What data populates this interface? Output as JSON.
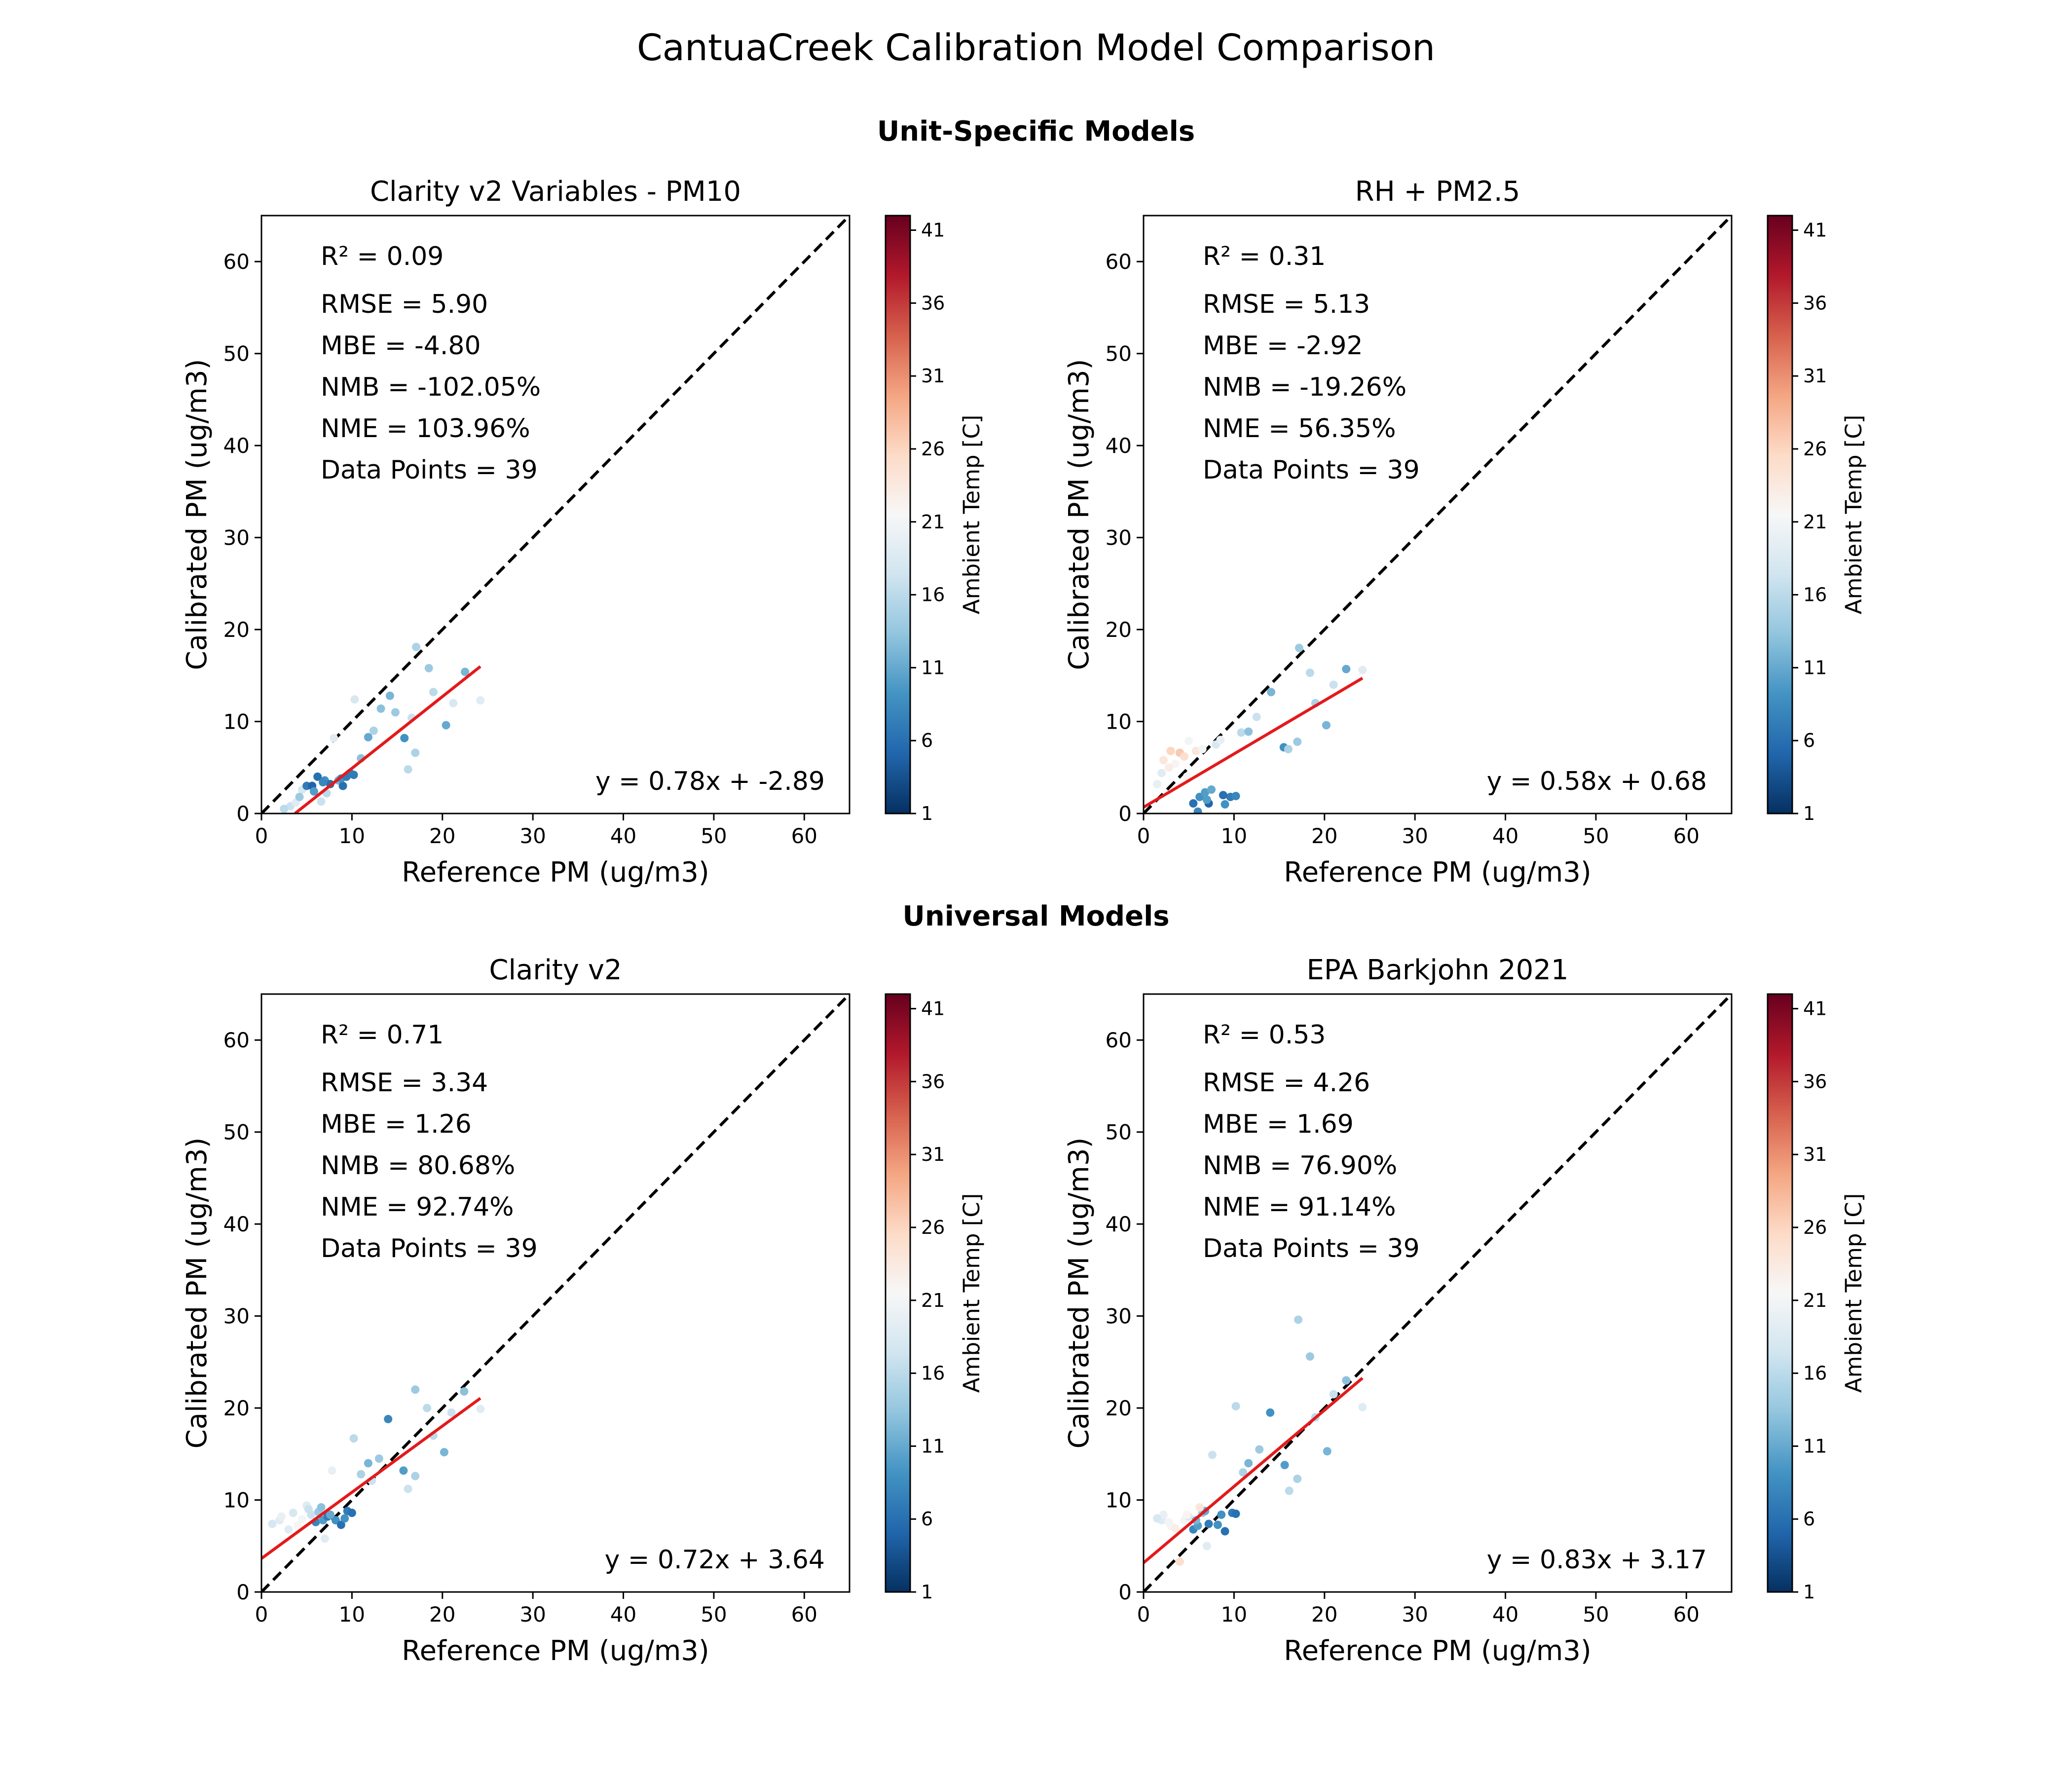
{
  "figure": {
    "title": "CantuaCreek Calibration Model Comparison",
    "sections": [
      "Unit-Specific Models",
      "Universal Models"
    ]
  },
  "axes": {
    "xlabel": "Reference PM (ug/m3)",
    "ylabel": "Calibrated PM (ug/m3)",
    "xlim": [
      0,
      65
    ],
    "ylim": [
      0,
      65
    ],
    "ticks": [
      0,
      10,
      20,
      30,
      40,
      50,
      60
    ]
  },
  "colorbar": {
    "label": "Ambient Temp [C]",
    "range": [
      1,
      42
    ],
    "ticks": [
      1,
      6,
      11,
      16,
      21,
      26,
      31,
      36,
      41
    ],
    "colormap": [
      "#053061",
      "#2166ac",
      "#4393c3",
      "#92c5de",
      "#d1e5f0",
      "#f7f7f7",
      "#fddbc7",
      "#f4a582",
      "#d6604d",
      "#b2182b",
      "#67001f"
    ]
  },
  "colors": {
    "fit_line": "#e31a1c",
    "identity_line": "#000000"
  },
  "chart_data": [
    {
      "type": "scatter",
      "title": "Clarity v2 Variables - PM10",
      "section": "Unit-Specific Models",
      "xlabel": "Reference PM (ug/m3)",
      "ylabel": "Calibrated PM (ug/m3)",
      "xlim": [
        0,
        65
      ],
      "ylim": [
        0,
        65
      ],
      "stats": [
        "R² = 0.09",
        "RMSE = 5.90",
        "MBE = -4.80",
        "NMB = -102.05%",
        "NME = 103.96%",
        "Data Points = 39"
      ],
      "equation": "y = 0.78x + -2.89",
      "fit": {
        "slope": 0.78,
        "intercept": -2.89,
        "x_range": [
          0.5,
          24.2
        ]
      },
      "points": [
        [
          3.2,
          0.8,
          17
        ],
        [
          3.8,
          1.2,
          19
        ],
        [
          4.5,
          2.6,
          18
        ],
        [
          5.0,
          3.0,
          7
        ],
        [
          5.6,
          3.0,
          5
        ],
        [
          6.2,
          4.0,
          6
        ],
        [
          6.6,
          1.3,
          17
        ],
        [
          7.0,
          3.6,
          9
        ],
        [
          7.6,
          3.2,
          6
        ],
        [
          8.0,
          8.2,
          19
        ],
        [
          8.5,
          3.6,
          12
        ],
        [
          9.0,
          3.0,
          6
        ],
        [
          9.8,
          4.4,
          8
        ],
        [
          10.2,
          4.2,
          7
        ],
        [
          10.3,
          12.4,
          18
        ],
        [
          11.8,
          8.3,
          11
        ],
        [
          13.2,
          11.4,
          13
        ],
        [
          14.2,
          12.8,
          12
        ],
        [
          15.8,
          8.2,
          9
        ],
        [
          16.2,
          4.8,
          16
        ],
        [
          17.0,
          6.6,
          15
        ],
        [
          17.1,
          18.1,
          15
        ],
        [
          18.5,
          15.8,
          14
        ],
        [
          20.4,
          9.6,
          11
        ],
        [
          22.5,
          15.4,
          12
        ],
        [
          24.2,
          12.3,
          19
        ],
        [
          2.5,
          0.5,
          16
        ],
        [
          4.2,
          1.8,
          14
        ],
        [
          5.8,
          2.4,
          10
        ],
        [
          6.8,
          3.4,
          8
        ],
        [
          7.2,
          2.2,
          16
        ],
        [
          8.8,
          3.8,
          9
        ],
        [
          9.4,
          4.0,
          7
        ],
        [
          11.0,
          6.0,
          13
        ],
        [
          12.4,
          9.0,
          15
        ],
        [
          14.8,
          11.0,
          14
        ],
        [
          16.6,
          10.4,
          17
        ],
        [
          19.0,
          13.2,
          16
        ],
        [
          21.2,
          12.0,
          18
        ]
      ]
    },
    {
      "type": "scatter",
      "title": "RH + PM2.5",
      "section": "Unit-Specific Models",
      "xlabel": "Reference PM (ug/m3)",
      "ylabel": "Calibrated PM (ug/m3)",
      "xlim": [
        0,
        65
      ],
      "ylim": [
        0,
        65
      ],
      "stats": [
        "R² = 0.31",
        "RMSE = 5.13",
        "MBE = -2.92",
        "NMB = -19.26%",
        "NME = 56.35%",
        "Data Points = 39"
      ],
      "equation": "y = 0.58x + 0.68",
      "fit": {
        "slope": 0.58,
        "intercept": 0.68,
        "x_range": [
          0.0,
          24.2
        ]
      },
      "points": [
        [
          2.0,
          4.4,
          19
        ],
        [
          2.2,
          5.8,
          24
        ],
        [
          3.0,
          6.8,
          26
        ],
        [
          3.5,
          5.4,
          22
        ],
        [
          4.0,
          6.6,
          27
        ],
        [
          4.5,
          6.2,
          25
        ],
        [
          5.0,
          7.9,
          21
        ],
        [
          5.5,
          1.1,
          6
        ],
        [
          6.0,
          0.2,
          8
        ],
        [
          6.2,
          1.8,
          9
        ],
        [
          6.8,
          2.3,
          10
        ],
        [
          7.2,
          1.1,
          5
        ],
        [
          7.5,
          2.6,
          11
        ],
        [
          8.0,
          7.5,
          18
        ],
        [
          8.5,
          8.0,
          20
        ],
        [
          9.0,
          1.0,
          9
        ],
        [
          9.6,
          1.8,
          7
        ],
        [
          10.2,
          1.9,
          8
        ],
        [
          10.8,
          8.8,
          16
        ],
        [
          11.6,
          8.9,
          13
        ],
        [
          14.1,
          13.2,
          12
        ],
        [
          15.5,
          7.2,
          9
        ],
        [
          16.0,
          7.0,
          15
        ],
        [
          17.0,
          7.8,
          14
        ],
        [
          17.2,
          18.0,
          14
        ],
        [
          18.4,
          15.3,
          16
        ],
        [
          20.2,
          9.6,
          12
        ],
        [
          22.4,
          15.7,
          11
        ],
        [
          24.2,
          15.6,
          19
        ],
        [
          1.5,
          3.2,
          20
        ],
        [
          2.8,
          5.0,
          23
        ],
        [
          4.8,
          4.0,
          22
        ],
        [
          5.8,
          6.8,
          24
        ],
        [
          6.5,
          7.0,
          21
        ],
        [
          7.0,
          1.5,
          10
        ],
        [
          8.8,
          2.0,
          6
        ],
        [
          12.5,
          10.5,
          17
        ],
        [
          19.0,
          12.0,
          15
        ],
        [
          21.0,
          14.0,
          17
        ]
      ]
    },
    {
      "type": "scatter",
      "title": "Clarity v2",
      "section": "Universal Models",
      "xlabel": "Reference PM (ug/m3)",
      "ylabel": "Calibrated PM (ug/m3)",
      "xlim": [
        0,
        65
      ],
      "ylim": [
        0,
        65
      ],
      "stats": [
        "R² = 0.71",
        "RMSE = 3.34",
        "MBE = 1.26",
        "NMB = 80.68%",
        "NME = 92.74%",
        "Data Points = 39"
      ],
      "equation": "y = 0.72x + 3.64",
      "fit": {
        "slope": 0.72,
        "intercept": 3.64,
        "x_range": [
          0.0,
          24.2
        ]
      },
      "points": [
        [
          2.0,
          7.8,
          19
        ],
        [
          2.2,
          8.2,
          20
        ],
        [
          3.5,
          8.6,
          18
        ],
        [
          4.0,
          7.2,
          22
        ],
        [
          4.5,
          7.9,
          21
        ],
        [
          5.0,
          9.4,
          19
        ],
        [
          5.5,
          8.4,
          17
        ],
        [
          6.0,
          7.6,
          8
        ],
        [
          6.3,
          8.7,
          14
        ],
        [
          6.8,
          7.8,
          10
        ],
        [
          7.0,
          5.8,
          19
        ],
        [
          7.3,
          8.2,
          7
        ],
        [
          7.8,
          13.2,
          20
        ],
        [
          8.2,
          7.8,
          9
        ],
        [
          8.8,
          7.3,
          6
        ],
        [
          9.5,
          8.8,
          7
        ],
        [
          10.0,
          8.6,
          6
        ],
        [
          10.2,
          16.7,
          16
        ],
        [
          11.8,
          14.0,
          12
        ],
        [
          12.2,
          12.1,
          17
        ],
        [
          14.0,
          18.8,
          8
        ],
        [
          15.7,
          13.2,
          10
        ],
        [
          16.2,
          11.2,
          17
        ],
        [
          17.0,
          12.6,
          15
        ],
        [
          17.0,
          22.0,
          14
        ],
        [
          18.3,
          20.0,
          16
        ],
        [
          20.2,
          15.2,
          12
        ],
        [
          22.4,
          21.8,
          13
        ],
        [
          24.2,
          19.9,
          19
        ],
        [
          1.2,
          7.4,
          18
        ],
        [
          3.0,
          6.8,
          19
        ],
        [
          5.2,
          9.0,
          17
        ],
        [
          6.6,
          9.2,
          13
        ],
        [
          7.6,
          8.4,
          11
        ],
        [
          9.2,
          8.0,
          9
        ],
        [
          11.0,
          12.8,
          15
        ],
        [
          13.0,
          14.5,
          14
        ],
        [
          19.0,
          17.0,
          16
        ],
        [
          21.0,
          19.5,
          17
        ]
      ]
    },
    {
      "type": "scatter",
      "title": "EPA Barkjohn 2021",
      "section": "Universal Models",
      "xlabel": "Reference PM (ug/m3)",
      "ylabel": "Calibrated PM (ug/m3)",
      "xlim": [
        0,
        65
      ],
      "ylim": [
        0,
        65
      ],
      "stats": [
        "R² = 0.53",
        "RMSE = 4.26",
        "MBE = 1.69",
        "NMB = 76.90%",
        "NME = 91.14%",
        "Data Points = 39"
      ],
      "equation": "y = 0.83x + 3.17",
      "fit": {
        "slope": 0.83,
        "intercept": 3.17,
        "x_range": [
          0.0,
          24.2
        ]
      },
      "points": [
        [
          2.0,
          7.8,
          19
        ],
        [
          2.2,
          8.4,
          20
        ],
        [
          3.0,
          7.2,
          22
        ],
        [
          3.5,
          6.9,
          23
        ],
        [
          4.0,
          3.3,
          25
        ],
        [
          4.5,
          7.8,
          21
        ],
        [
          5.0,
          8.2,
          18
        ],
        [
          5.5,
          6.8,
          8
        ],
        [
          6.0,
          7.2,
          10
        ],
        [
          6.5,
          8.6,
          14
        ],
        [
          7.0,
          5.0,
          19
        ],
        [
          7.2,
          7.4,
          7
        ],
        [
          7.6,
          14.9,
          17
        ],
        [
          8.2,
          7.3,
          9
        ],
        [
          9.0,
          6.6,
          6
        ],
        [
          9.8,
          8.6,
          7
        ],
        [
          10.2,
          8.5,
          6
        ],
        [
          10.2,
          20.2,
          16
        ],
        [
          11.6,
          14.0,
          12
        ],
        [
          14.0,
          19.5,
          9
        ],
        [
          15.6,
          13.8,
          10
        ],
        [
          16.1,
          11.0,
          16
        ],
        [
          17.0,
          12.3,
          15
        ],
        [
          17.1,
          29.6,
          15
        ],
        [
          18.4,
          25.6,
          14
        ],
        [
          20.3,
          15.3,
          12
        ],
        [
          22.4,
          23.0,
          13
        ],
        [
          24.2,
          20.1,
          19
        ],
        [
          1.5,
          8.0,
          18
        ],
        [
          2.8,
          7.6,
          21
        ],
        [
          4.8,
          8.4,
          22
        ],
        [
          5.8,
          7.8,
          12
        ],
        [
          6.8,
          8.8,
          11
        ],
        [
          8.6,
          8.4,
          9
        ],
        [
          11.0,
          13.0,
          15
        ],
        [
          12.8,
          15.5,
          14
        ],
        [
          19.0,
          19.0,
          16
        ],
        [
          21.0,
          21.5,
          17
        ],
        [
          6.2,
          9.2,
          24
        ]
      ]
    }
  ]
}
